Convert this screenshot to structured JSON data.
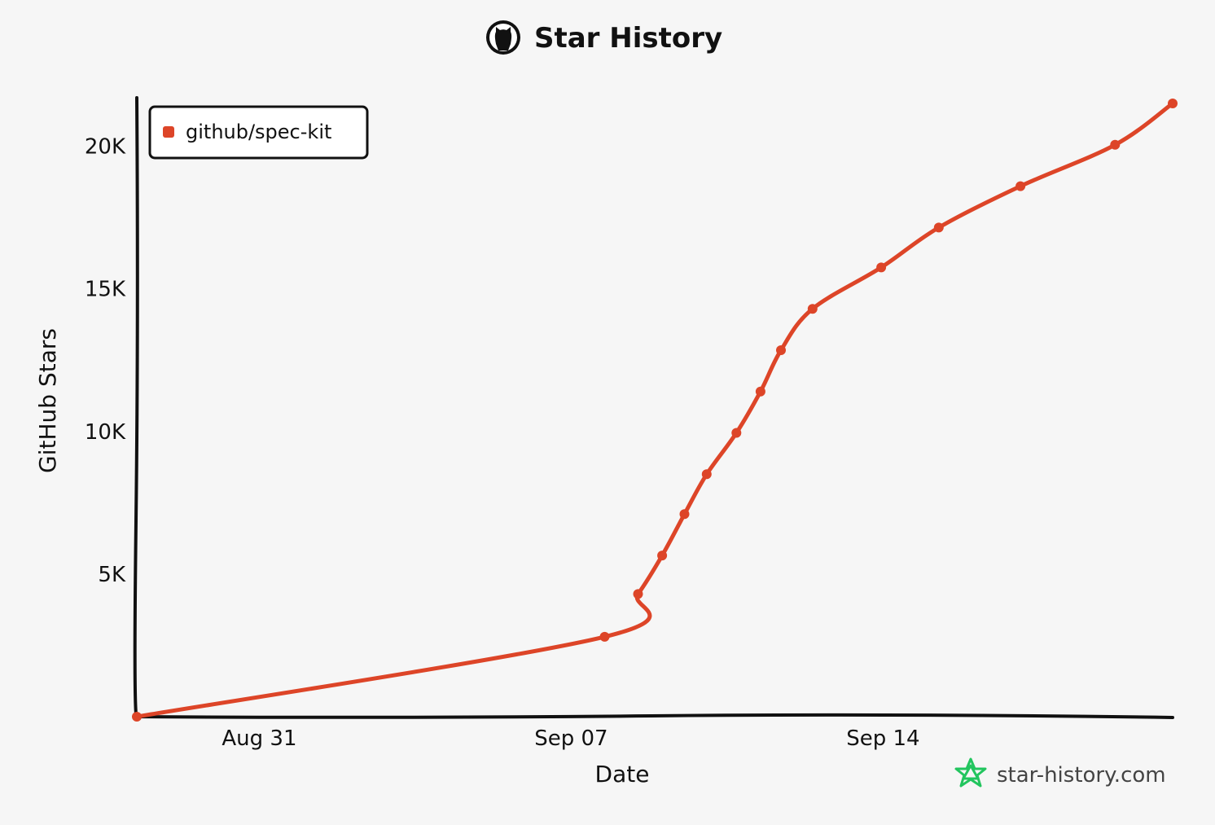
{
  "header": {
    "title": "Star History",
    "logo_icon": "github-octocat-icon"
  },
  "watermark": {
    "text": "star-history.com",
    "icon": "star-history-logo-icon",
    "color": "#22c55e"
  },
  "chart_data": {
    "type": "line",
    "title": "Star History",
    "xlabel": "Date",
    "ylabel": "GitHub Stars",
    "x_ticks": [
      {
        "date": "2025-08-31",
        "label": "Aug 31"
      },
      {
        "date": "2025-09-07",
        "label": "Sep 07"
      },
      {
        "date": "2025-09-14",
        "label": "Sep 14"
      }
    ],
    "y_ticks": [
      {
        "value": 5000,
        "label": "5K"
      },
      {
        "value": 10000,
        "label": "10K"
      },
      {
        "value": 15000,
        "label": "15K"
      },
      {
        "value": 20000,
        "label": "20K"
      }
    ],
    "xlim": [
      "2025-08-28T06:00",
      "2025-09-20T12:00"
    ],
    "ylim": [
      0,
      21700
    ],
    "grid": false,
    "legend_position": "top-left",
    "series": [
      {
        "name": "github/spec-kit",
        "color": "#dd4528",
        "points": [
          {
            "date": "2025-08-28T06:00",
            "stars": 0
          },
          {
            "date": "2025-09-07T18:00",
            "stars": 2800
          },
          {
            "date": "2025-09-08T12:00",
            "stars": 4300
          },
          {
            "date": "2025-09-09T01:00",
            "stars": 5650
          },
          {
            "date": "2025-09-09T13:00",
            "stars": 7100
          },
          {
            "date": "2025-09-10T01:00",
            "stars": 8500
          },
          {
            "date": "2025-09-10T17:00",
            "stars": 9950
          },
          {
            "date": "2025-09-11T06:00",
            "stars": 11400
          },
          {
            "date": "2025-09-11T17:00",
            "stars": 12850
          },
          {
            "date": "2025-09-12T10:00",
            "stars": 14300
          },
          {
            "date": "2025-09-13T23:00",
            "stars": 15750
          },
          {
            "date": "2025-09-15T06:00",
            "stars": 17150
          },
          {
            "date": "2025-09-17T02:00",
            "stars": 18600
          },
          {
            "date": "2025-09-19T05:00",
            "stars": 20050
          },
          {
            "date": "2025-09-20T12:00",
            "stars": 21500
          }
        ]
      }
    ]
  }
}
